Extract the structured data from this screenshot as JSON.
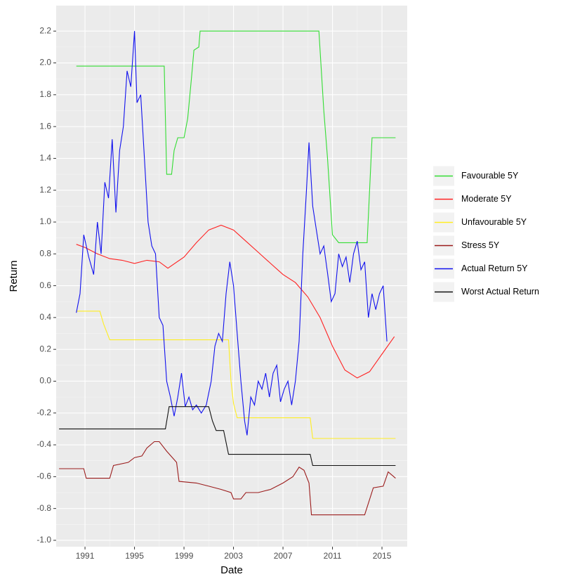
{
  "chart_data": {
    "type": "line",
    "xlabel": "Date",
    "ylabel": "Return",
    "xlim": [
      1988.67,
      2017.04
    ],
    "ylim": [
      -1.04,
      2.36
    ],
    "xticks": [
      1991,
      1995,
      1999,
      2003,
      2007,
      2011,
      2015
    ],
    "yticks": [
      {
        "value": -1,
        "label": "-1.0"
      },
      -0.8,
      -0.6,
      -0.4,
      -0.2,
      {
        "value": 0,
        "label": "0.0"
      },
      0.2,
      0.4,
      0.6,
      0.8,
      {
        "value": 1,
        "label": "1.0"
      },
      1.2,
      1.4,
      1.6,
      1.8,
      {
        "value": 2,
        "label": "2.0"
      },
      2.2
    ],
    "grid": true,
    "legend": "right",
    "series": [
      {
        "name": "Favourable 5Y",
        "color": "#33dd33",
        "x": [
          1990.3,
          1997.4,
          1997.6,
          1998.0,
          1998.2,
          1998.5,
          1999.0,
          1999.3,
          1999.6,
          1999.8,
          2000.2,
          2000.3,
          2009.9,
          2010.3,
          2010.6,
          2011.0,
          2011.5,
          2013.8,
          2014.2,
          2016.1
        ],
        "values": [
          1.98,
          1.98,
          1.3,
          1.3,
          1.45,
          1.53,
          1.53,
          1.65,
          1.9,
          2.08,
          2.1,
          2.2,
          2.2,
          1.7,
          1.4,
          0.92,
          0.87,
          0.87,
          1.53,
          1.53
        ]
      },
      {
        "name": "Moderate 5Y",
        "color": "#ff2222",
        "x": [
          1990.3,
          1991,
          1992,
          1993,
          1994,
          1995,
          1996,
          1997,
          1997.7,
          1999,
          2000,
          2001,
          2002,
          2003,
          2004,
          2005,
          2006,
          2007,
          2008,
          2009,
          2010,
          2011,
          2012,
          2013,
          2014,
          2015,
          2016
        ],
        "values": [
          0.86,
          0.84,
          0.8,
          0.77,
          0.76,
          0.74,
          0.76,
          0.75,
          0.71,
          0.78,
          0.87,
          0.95,
          0.98,
          0.95,
          0.88,
          0.81,
          0.74,
          0.67,
          0.62,
          0.53,
          0.4,
          0.22,
          0.07,
          0.02,
          0.06,
          0.17,
          0.28
        ]
      },
      {
        "name": "Unfavourable 5Y",
        "color": "#ffee22",
        "x": [
          1990.3,
          1992.2,
          1992.5,
          1993.0,
          2002.6,
          2002.8,
          2003.0,
          2003.3,
          2009.2,
          2009.4,
          2016.1
        ],
        "values": [
          0.44,
          0.44,
          0.36,
          0.26,
          0.26,
          0.0,
          -0.14,
          -0.23,
          -0.23,
          -0.36,
          -0.36
        ]
      },
      {
        "name": "Stress 5Y",
        "color": "#9b1c1c",
        "x": [
          1988.9,
          1990.9,
          1991.1,
          1993.0,
          1993.3,
          1994.5,
          1995.0,
          1995.6,
          1996.0,
          1996.6,
          1997.0,
          1997.6,
          1998.4,
          1998.6,
          2000,
          2001,
          2002,
          2002.8,
          2003.0,
          2003.6,
          2004,
          2005,
          2006,
          2007,
          2007.8,
          2008.3,
          2008.7,
          2009.1,
          2009.3,
          2013.6,
          2014.3,
          2015.1,
          2015.5,
          2016.1
        ],
        "values": [
          -0.55,
          -0.55,
          -0.61,
          -0.61,
          -0.53,
          -0.51,
          -0.48,
          -0.47,
          -0.42,
          -0.38,
          -0.38,
          -0.44,
          -0.51,
          -0.63,
          -0.64,
          -0.66,
          -0.68,
          -0.7,
          -0.74,
          -0.74,
          -0.7,
          -0.7,
          -0.68,
          -0.64,
          -0.6,
          -0.54,
          -0.56,
          -0.64,
          -0.84,
          -0.84,
          -0.67,
          -0.66,
          -0.57,
          -0.61
        ]
      },
      {
        "name": "Actual Return 5Y",
        "color": "#1111ee",
        "x": [
          1990.3,
          1990.6,
          1990.9,
          1991.3,
          1991.7,
          1992.0,
          1992.3,
          1992.6,
          1992.9,
          1993.2,
          1993.5,
          1993.8,
          1994.1,
          1994.4,
          1994.7,
          1995.0,
          1995.2,
          1995.5,
          1995.8,
          1996.1,
          1996.4,
          1996.7,
          1997.0,
          1997.3,
          1997.6,
          1997.9,
          1998.2,
          1998.5,
          1998.8,
          1999.1,
          1999.4,
          1999.7,
          2000.0,
          2000.4,
          2000.8,
          2001.2,
          2001.5,
          2001.8,
          2002.1,
          2002.4,
          2002.7,
          2003.0,
          2003.3,
          2003.6,
          2003.9,
          2004.1,
          2004.4,
          2004.7,
          2005.0,
          2005.3,
          2005.6,
          2005.9,
          2006.2,
          2006.5,
          2006.8,
          2007.1,
          2007.4,
          2007.7,
          2008.0,
          2008.3,
          2008.6,
          2008.9,
          2009.1,
          2009.4,
          2009.7,
          2010.0,
          2010.3,
          2010.6,
          2010.9,
          2011.2,
          2011.5,
          2011.8,
          2012.1,
          2012.4,
          2012.7,
          2013.0,
          2013.3,
          2013.6,
          2013.9,
          2014.2,
          2014.5,
          2014.8,
          2015.1,
          2015.4
        ],
        "values": [
          0.43,
          0.55,
          0.92,
          0.78,
          0.67,
          1.0,
          0.8,
          1.25,
          1.15,
          1.52,
          1.06,
          1.45,
          1.6,
          1.95,
          1.85,
          2.2,
          1.75,
          1.8,
          1.4,
          1.0,
          0.85,
          0.8,
          0.4,
          0.35,
          0.0,
          -0.1,
          -0.22,
          -0.1,
          0.05,
          -0.16,
          -0.1,
          -0.18,
          -0.15,
          -0.2,
          -0.15,
          0.0,
          0.22,
          0.3,
          0.25,
          0.55,
          0.75,
          0.6,
          0.3,
          0.0,
          -0.25,
          -0.34,
          -0.1,
          -0.15,
          0.0,
          -0.05,
          0.05,
          -0.1,
          0.05,
          0.1,
          -0.13,
          -0.05,
          0.0,
          -0.15,
          0.0,
          0.25,
          0.8,
          1.2,
          1.5,
          1.1,
          0.95,
          0.8,
          0.85,
          0.68,
          0.5,
          0.55,
          0.8,
          0.72,
          0.78,
          0.62,
          0.8,
          0.88,
          0.7,
          0.75,
          0.4,
          0.55,
          0.45,
          0.55,
          0.6,
          0.25
        ]
      },
      {
        "name": "Worst Actual Return",
        "color": "#111111",
        "x": [
          1988.9,
          1997.5,
          1997.8,
          2001.0,
          2001.3,
          2001.6,
          2002.2,
          2002.6,
          2009.2,
          2009.4,
          2016.1
        ],
        "values": [
          -0.3,
          -0.3,
          -0.16,
          -0.16,
          -0.25,
          -0.31,
          -0.31,
          -0.46,
          -0.46,
          -0.53,
          -0.53
        ]
      }
    ]
  }
}
